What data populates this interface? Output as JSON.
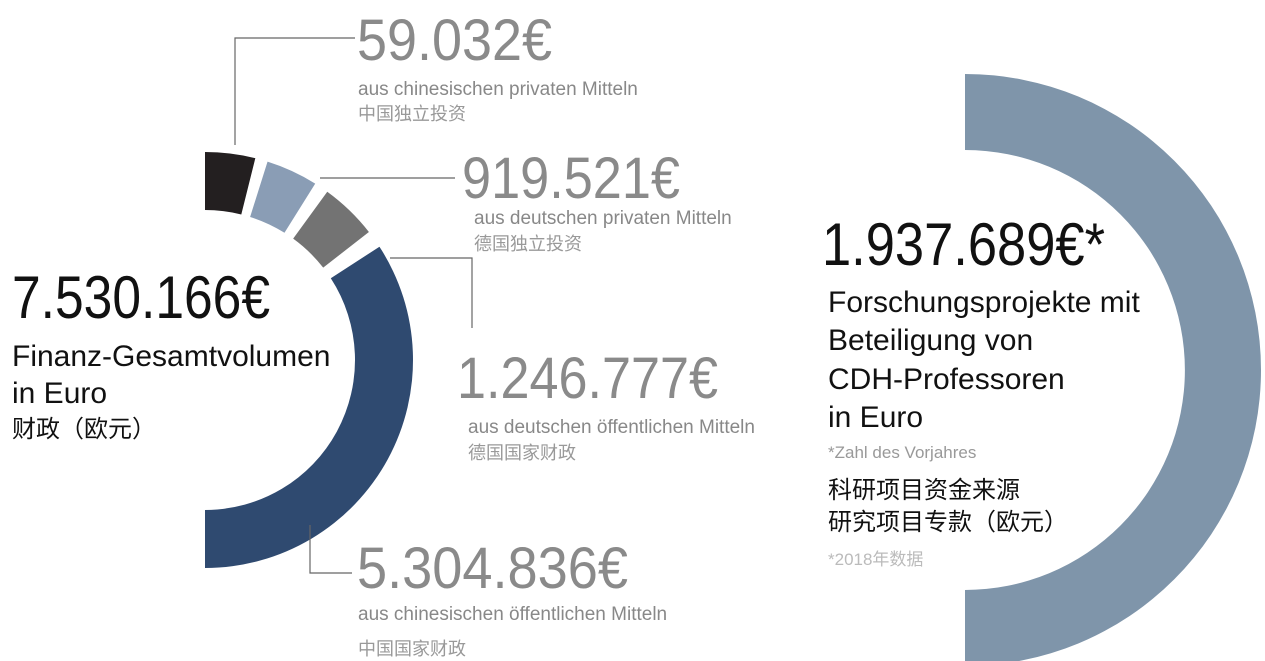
{
  "left": {
    "total": "7.530.166€",
    "label_de": [
      "Finanz-Gesamtvolumen",
      "in Euro"
    ],
    "label_zh": "财政（欧元）"
  },
  "sources": [
    {
      "amount": "59.032€",
      "de": "aus chinesischen privaten Mitteln",
      "zh": "中国独立投资"
    },
    {
      "amount": "919.521€",
      "de": "aus deutschen privaten Mitteln",
      "zh": "德国独立投资"
    },
    {
      "amount": "1.246.777€",
      "de": "aus deutschen öffentlichen Mitteln",
      "zh": "德国国家财政"
    },
    {
      "amount": "5.304.836€",
      "de": "aus chinesischen öffentlichen Mitteln",
      "zh": "中国国家财政"
    }
  ],
  "right": {
    "amount": "1.937.689€*",
    "label_de": [
      "Forschungsprojekte mit",
      "Beteiligung von",
      "CDH-Professoren",
      "in Euro"
    ],
    "note_de": "*Zahl des Vorjahres",
    "label_zh": [
      "科研项目资金来源",
      "研究项目专款（欧元）"
    ],
    "note_zh": "*2018年数据"
  }
}
